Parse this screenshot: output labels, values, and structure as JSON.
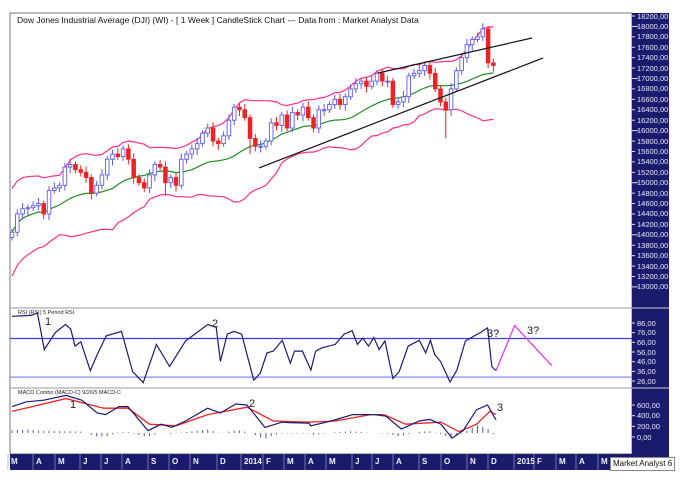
{
  "title": "Dow Jones Industrial Average (DJI) (WI) -  [ 1 Week ] CandleStick Chart --- Data from : Market Analyst Data",
  "brand": "Market Analyst 6",
  "colors": {
    "axis_bg": "#1b1b6e",
    "up": "#5a5af0",
    "down": "#ee2222",
    "bands": "#ff2f86",
    "ma": "#1f8f1f",
    "rsi": "#1a1a78",
    "macd": "#1a1a78",
    "signal": "#ee2222",
    "hist": "#5a5aa8",
    "projection": "#e040e8",
    "hline": "#3a3af0"
  },
  "chart_data": [
    {
      "type": "candlestick",
      "title": "Dow Jones Industrial Average (DJI) (WI) - [ 1 Week ] CandleStick Chart",
      "period": "1 Week",
      "overlays": [
        "Bollinger Bands (20, 2)",
        "20-period moving average"
      ],
      "closes": [
        14050,
        14400,
        14500,
        14520,
        14560,
        14600,
        14400,
        14850,
        14900,
        14950,
        15300,
        15350,
        15250,
        15200,
        15100,
        14800,
        14950,
        15150,
        15450,
        15550,
        15500,
        15650,
        15450,
        15100,
        15000,
        14900,
        15150,
        15350,
        15300,
        15000,
        15100,
        14950,
        15450,
        15550,
        15650,
        15750,
        15950,
        16050,
        15800,
        15750,
        15900,
        16200,
        16450,
        16400,
        16250,
        15850,
        15700,
        15700,
        15800,
        16150,
        16100,
        16300,
        16050,
        16350,
        16300,
        16450,
        16250,
        16050,
        16400,
        16400,
        16500,
        16600,
        16500,
        16650,
        16800,
        16900,
        16950,
        16850,
        16950,
        17100,
        16950,
        16950,
        16500,
        16550,
        16650,
        17050,
        17100,
        17150,
        17250,
        17100,
        16800,
        16550,
        16400,
        16800,
        17150,
        17400,
        17650,
        17750,
        17800,
        17950,
        17300,
        17250
      ],
      "first_open": 13950,
      "low_overrides": {
        "82": 15850,
        "45": 15550,
        "29": 14750
      },
      "trendlines": [
        {
          "from": [
            69.2,
            17106
          ],
          "to": [
            98.3,
            17778
          ]
        },
        {
          "from": [
            46.7,
            15283
          ],
          "to": [
            100.4,
            17394
          ]
        }
      ],
      "y_ticks": [
        "18200,00",
        "18000,00",
        "17800,00",
        "17600,00",
        "17400,00",
        "17200,00",
        "17000,00",
        "16800,00",
        "16600,00",
        "16400,00",
        "16200,00",
        "16000,00",
        "15800,00",
        "15600,00",
        "15400,00",
        "15200,00",
        "15000,00",
        "14800,00",
        "14600,00",
        "14400,00",
        "14200,00",
        "14000,00",
        "13800,00",
        "13600,00",
        "13400,00",
        "13200,00",
        "13000,00"
      ],
      "ylim": [
        13000,
        18200
      ]
    },
    {
      "type": "line",
      "title": "RSI (RSI) 5 Period RSI",
      "points": [
        [
          0,
          92.9
        ],
        [
          3.6,
          93.9
        ],
        [
          4.8,
          96.4
        ],
        [
          6.1,
          58.6
        ],
        [
          8.2,
          76.3
        ],
        [
          10.1,
          84.4
        ],
        [
          11.1,
          79.8
        ],
        [
          11.9,
          62.1
        ],
        [
          13,
          66.7
        ],
        [
          14.8,
          36.7
        ],
        [
          16.1,
          53.3
        ],
        [
          17.8,
          72.7
        ],
        [
          20.7,
          77.3
        ],
        [
          22.8,
          35.7
        ],
        [
          24.8,
          24.4
        ],
        [
          27.3,
          63.9
        ],
        [
          29.8,
          41
        ],
        [
          32.8,
          67.4
        ],
        [
          37,
          84.4
        ],
        [
          38.6,
          81.6
        ],
        [
          39.4,
          46.3
        ],
        [
          40.7,
          74.5
        ],
        [
          42,
          77.3
        ],
        [
          43.4,
          74.5
        ],
        [
          45.7,
          26.8
        ],
        [
          46.9,
          33.9
        ],
        [
          48.2,
          55.1
        ],
        [
          49.4,
          56.9
        ],
        [
          51.1,
          68.1
        ],
        [
          52.6,
          44.5
        ],
        [
          53.4,
          56.9
        ],
        [
          54.9,
          56.9
        ],
        [
          56.5,
          37.4
        ],
        [
          57.4,
          56.9
        ],
        [
          58.6,
          60.4
        ],
        [
          61.1,
          63.9
        ],
        [
          62.8,
          74.5
        ],
        [
          64.3,
          78
        ],
        [
          65.3,
          63.9
        ],
        [
          66.3,
          70.3
        ],
        [
          67.4,
          62.1
        ],
        [
          68.4,
          71
        ],
        [
          69.4,
          58.6
        ],
        [
          70.5,
          67.4
        ],
        [
          72,
          28.6
        ],
        [
          73.2,
          35.7
        ],
        [
          74.9,
          62.1
        ],
        [
          77,
          68.1
        ],
        [
          78.2,
          55.1
        ],
        [
          79.1,
          68.1
        ],
        [
          79.9,
          53.3
        ],
        [
          81,
          46.3
        ],
        [
          82.8,
          25.1
        ],
        [
          84.1,
          37.4
        ],
        [
          85.7,
          67.4
        ],
        [
          87.4,
          72.7
        ],
        [
          88.6,
          76.3
        ],
        [
          89.9,
          80.9
        ],
        [
          90.7,
          41
        ],
        [
          91.5,
          36.7
        ]
      ],
      "projection": [
        [
          91.5,
          36.7
        ],
        [
          95,
          83.3
        ],
        [
          102,
          42
        ]
      ],
      "levels": [
        70,
        30
      ],
      "y_ticks": [
        "86,00",
        "76,00",
        "66,00",
        "56,00",
        "46,00",
        "36,00",
        "26,00"
      ],
      "annotations": [
        "1",
        "2",
        "3?",
        "3?"
      ]
    },
    {
      "type": "line",
      "title": "MACD Combo (MACD-C) 9/26/5 MACD-C",
      "macd": [
        [
          0,
          570
        ],
        [
          2.7,
          660
        ],
        [
          6,
          690
        ],
        [
          10.2,
          780
        ],
        [
          13.2,
          690
        ],
        [
          16.1,
          450
        ],
        [
          17.7,
          420
        ],
        [
          20.2,
          570
        ],
        [
          21.9,
          570
        ],
        [
          25.7,
          120
        ],
        [
          28.2,
          240
        ],
        [
          30.2,
          180
        ],
        [
          32.8,
          300
        ],
        [
          37,
          540
        ],
        [
          39.4,
          450
        ],
        [
          42.3,
          620
        ],
        [
          44.4,
          600
        ],
        [
          47.8,
          180
        ],
        [
          51.1,
          280
        ],
        [
          52.4,
          270
        ],
        [
          56.1,
          260
        ],
        [
          56.5,
          210
        ],
        [
          60.3,
          300
        ],
        [
          64.4,
          420
        ],
        [
          68.6,
          420
        ],
        [
          70.7,
          390
        ],
        [
          73.6,
          150
        ],
        [
          77,
          300
        ],
        [
          79,
          330
        ],
        [
          81.1,
          240
        ],
        [
          83.2,
          -20
        ],
        [
          85.3,
          120
        ],
        [
          87.8,
          510
        ],
        [
          89.9,
          600
        ],
        [
          91.5,
          320
        ]
      ],
      "signal": [
        [
          0,
          480
        ],
        [
          10.2,
          720
        ],
        [
          17.3,
          540
        ],
        [
          21.9,
          540
        ],
        [
          26,
          240
        ],
        [
          31,
          210
        ],
        [
          37,
          420
        ],
        [
          44.4,
          560
        ],
        [
          49.4,
          300
        ],
        [
          56.1,
          280
        ],
        [
          61.1,
          300
        ],
        [
          67.8,
          420
        ],
        [
          70.3,
          420
        ],
        [
          74.4,
          240
        ],
        [
          81.1,
          280
        ],
        [
          84.5,
          100
        ],
        [
          87.8,
          240
        ],
        [
          90.3,
          480
        ],
        [
          91.5,
          420
        ]
      ],
      "y_ticks": [
        "600,00",
        "400,00",
        "200,00",
        "0,00"
      ],
      "annotations": [
        "1",
        "2",
        "3"
      ]
    }
  ],
  "x_axis": {
    "labels": [
      "M",
      "A",
      "M",
      "J",
      "J",
      "A",
      "S",
      "O",
      "N",
      "D",
      "2014",
      "F",
      "M",
      "A",
      "M",
      "J",
      "J",
      "A",
      "S",
      "O",
      "N",
      "D",
      "2015",
      "F",
      "M",
      "A",
      "M"
    ]
  }
}
